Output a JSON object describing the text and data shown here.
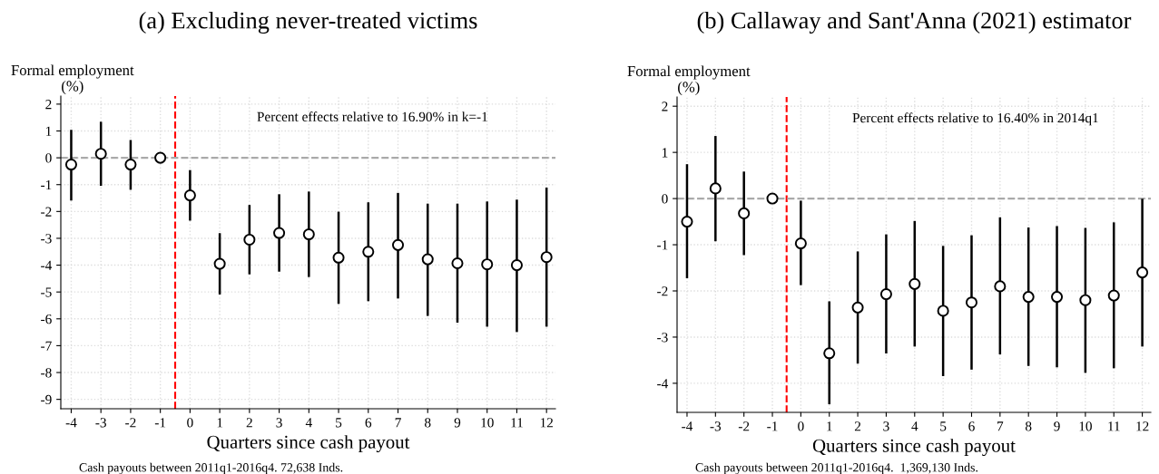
{
  "chart_data": [
    {
      "type": "scatter",
      "title": "(a) Excluding never-treated victims",
      "xlabel": "Quarters since cash payout",
      "ylabel": "Formal employment\n(%)",
      "x": [
        -4,
        -3,
        -2,
        -1,
        0,
        1,
        2,
        3,
        4,
        5,
        6,
        7,
        8,
        9,
        10,
        11,
        12
      ],
      "series": [
        {
          "color": "#000000",
          "values": [
            -0.25,
            0.15,
            -0.25,
            0,
            -1.4,
            -3.95,
            -3.05,
            -2.8,
            -2.85,
            -3.72,
            -3.5,
            -3.25,
            -3.78,
            -3.93,
            -3.97,
            -4.0,
            -3.7
          ],
          "errors": [
            [
              -1.55,
              1.0
            ],
            [
              -1.0,
              1.3
            ],
            [
              -1.15,
              0.62
            ],
            null,
            [
              -2.3,
              -0.5
            ],
            [
              -5.05,
              -2.85
            ],
            [
              -4.3,
              -1.8
            ],
            [
              -4.2,
              -1.4
            ],
            [
              -4.4,
              -1.3
            ],
            [
              -5.4,
              -2.05
            ],
            [
              -5.3,
              -1.7
            ],
            [
              -5.2,
              -1.35
            ],
            [
              -5.85,
              -1.75
            ],
            [
              -6.1,
              -1.75
            ],
            [
              -6.25,
              -1.67
            ],
            [
              -6.45,
              -1.6
            ],
            [
              -6.25,
              -1.15
            ]
          ]
        }
      ],
      "xlim": [
        -4.35,
        12.3
      ],
      "xticks": [
        -4,
        -3,
        -2,
        -1,
        0,
        1,
        2,
        3,
        4,
        5,
        6,
        7,
        8,
        9,
        10,
        11,
        12
      ],
      "ylim": [
        -9.35,
        2.3
      ],
      "yticks": [
        -9,
        -8,
        -7,
        -6,
        -5,
        -4,
        -3,
        -2,
        -1,
        0,
        1,
        2
      ],
      "marker": "circle",
      "grid": true,
      "ref_lines": [
        {
          "axis": "x",
          "value": -0.5,
          "color": "#ff0000",
          "line_style": "dashed"
        },
        {
          "axis": "y",
          "value": 0,
          "color": "#aaaaaa",
          "line_style": "dashed"
        }
      ],
      "annotations": [
        "Percent effects relative to 16.90% in k=-1",
        "Cash payouts between 2011q1-2016q4. 72,638 Inds."
      ]
    },
    {
      "type": "scatter",
      "title": "(b) Callaway and Sant'Anna (2021) estimator",
      "xlabel": "Quarters since cash payout",
      "ylabel": "Formal employment\n(%)",
      "x": [
        -4,
        -3,
        -2,
        -1,
        0,
        1,
        2,
        3,
        4,
        5,
        6,
        7,
        8,
        9,
        10,
        11,
        12
      ],
      "series": [
        {
          "color": "#000000",
          "values": [
            -0.5,
            0.22,
            -0.32,
            0,
            -0.97,
            -3.35,
            -2.36,
            -2.07,
            -1.85,
            -2.43,
            -2.25,
            -1.9,
            -2.13,
            -2.13,
            -2.2,
            -2.1,
            -1.6
          ],
          "errors": [
            [
              -1.7,
              0.72
            ],
            [
              -0.9,
              1.33
            ],
            [
              -1.2,
              0.56
            ],
            null,
            [
              -1.85,
              -0.07
            ],
            [
              -4.43,
              -2.25
            ],
            [
              -3.55,
              -1.17
            ],
            [
              -3.33,
              -0.8
            ],
            [
              -3.18,
              -0.51
            ],
            [
              -3.82,
              -1.05
            ],
            [
              -3.68,
              -0.82
            ],
            [
              -3.35,
              -0.43
            ],
            [
              -3.6,
              -0.65
            ],
            [
              -3.63,
              -0.62
            ],
            [
              -3.75,
              -0.66
            ],
            [
              -3.65,
              -0.54
            ],
            [
              -3.18,
              -0.03
            ]
          ]
        }
      ],
      "xlim": [
        -4.35,
        12.3
      ],
      "xticks": [
        -4,
        -3,
        -2,
        -1,
        0,
        1,
        2,
        3,
        4,
        5,
        6,
        7,
        8,
        9,
        10,
        11,
        12
      ],
      "ylim": [
        -4.63,
        2.2
      ],
      "yticks": [
        -4,
        -3,
        -2,
        -1,
        0,
        1,
        2
      ],
      "marker": "circle",
      "grid": true,
      "ref_lines": [
        {
          "axis": "x",
          "value": -0.5,
          "color": "#ff0000",
          "line_style": "dashed"
        },
        {
          "axis": "y",
          "value": 0,
          "color": "#aaaaaa",
          "line_style": "dashed"
        }
      ],
      "annotations": [
        "Percent effects relative to 16.40% in 2014q1",
        "Cash payouts between 2011q1-2016q4.  1,369,130 Inds."
      ]
    }
  ]
}
